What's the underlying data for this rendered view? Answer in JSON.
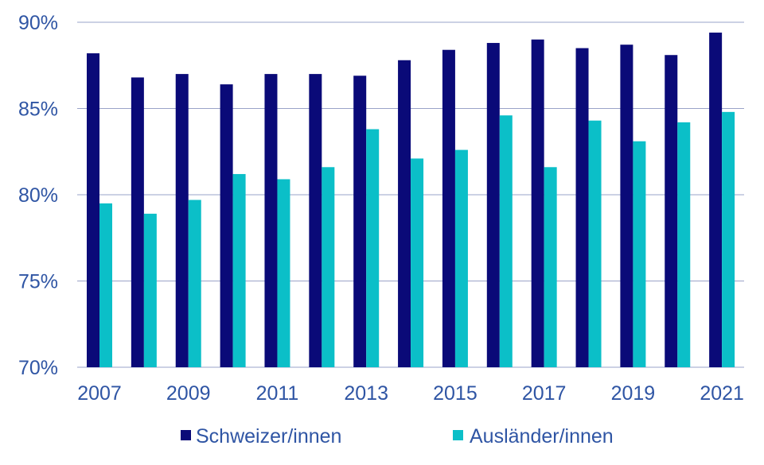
{
  "chart_data": {
    "type": "bar",
    "categories": [
      "2007",
      "2008",
      "2009",
      "2010",
      "2011",
      "2012",
      "2013",
      "2014",
      "2015",
      "2016",
      "2017",
      "2018",
      "2019",
      "2020",
      "2021"
    ],
    "x_tick_labels": [
      "2007",
      "2009",
      "2011",
      "2013",
      "2015",
      "2017",
      "2019",
      "2021"
    ],
    "y_ticks": [
      70,
      75,
      80,
      85,
      90
    ],
    "y_tick_labels": [
      "70%",
      "75%",
      "80%",
      "85%",
      "90%"
    ],
    "ylim": [
      70,
      90
    ],
    "grid": true,
    "legend_position": "bottom",
    "series": [
      {
        "name": "Schweizer/innen",
        "color": "#0a0a78",
        "values": [
          88.2,
          86.8,
          87.0,
          86.4,
          87.0,
          87.0,
          86.9,
          87.8,
          88.4,
          88.8,
          89.0,
          88.5,
          88.7,
          88.1,
          89.4
        ]
      },
      {
        "name": "Ausländer/innen",
        "color": "#0bbfc8",
        "values": [
          79.5,
          78.9,
          79.7,
          81.2,
          80.9,
          81.6,
          83.8,
          82.1,
          82.6,
          84.6,
          81.6,
          84.3,
          83.1,
          84.2,
          84.8
        ]
      }
    ],
    "axis_color": "#9aa3c8",
    "tick_label_color": "#2f55a4"
  }
}
